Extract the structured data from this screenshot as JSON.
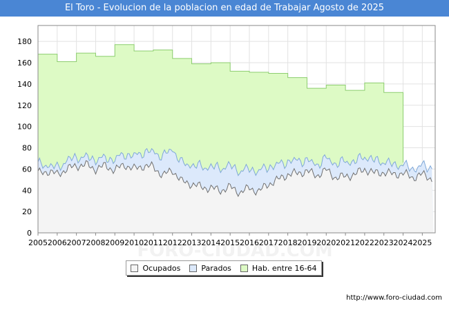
{
  "title": "El Toro - Evolucion de la poblacion en edad de Trabajar Agosto de 2025",
  "footer_url": "http://www.foro-ciudad.com",
  "watermark": "FORO-CIUDAD.COM",
  "colors": {
    "title_bg": "#4a86d4",
    "hab_fill": "#ddfac5",
    "hab_line": "#8ccd6e",
    "parados_fill": "#dce9fb",
    "parados_line": "#7fa8d8",
    "ocupados_fill": "#f4f4f4",
    "ocupados_line": "#707070"
  },
  "chart_data": {
    "type": "area",
    "title": "El Toro - Evolucion de la poblacion en edad de Trabajar Agosto de 2025",
    "x_range": [
      2005,
      2025.67
    ],
    "ylim": [
      0,
      195
    ],
    "y_ticks": [
      0,
      20,
      40,
      60,
      80,
      100,
      120,
      140,
      160,
      180
    ],
    "x_ticks": [
      "2005",
      "2006",
      "2007",
      "2008",
      "2009",
      "2010",
      "2011",
      "2012",
      "2013",
      "2014",
      "2015",
      "2016",
      "2017",
      "2018",
      "2019",
      "2020",
      "2021",
      "2022",
      "2023",
      "2024",
      "2025"
    ],
    "grid": true,
    "legend_position": "bottom",
    "legend": [
      "Ocupados",
      "Parados",
      "Hab. entre 16-64"
    ],
    "hab_16_64": {
      "years": [
        2005,
        2006,
        2007,
        2008,
        2009,
        2010,
        2011,
        2012,
        2013,
        2014,
        2015,
        2016,
        2017,
        2018,
        2019,
        2020,
        2021,
        2022,
        2023
      ],
      "values": [
        168,
        161,
        169,
        166,
        177,
        171,
        172,
        164,
        159,
        160,
        152,
        151,
        150,
        146,
        136,
        139,
        134,
        141,
        132
      ]
    },
    "monthly_anchors": {
      "x": [
        2005.0,
        2005.5,
        2006.0,
        2006.5,
        2007.0,
        2007.5,
        2008.0,
        2008.5,
        2009.0,
        2009.5,
        2010.0,
        2010.5,
        2011.0,
        2011.5,
        2012.0,
        2012.5,
        2013.0,
        2013.5,
        2014.0,
        2014.5,
        2015.0,
        2015.5,
        2016.0,
        2016.5,
        2017.0,
        2017.5,
        2018.0,
        2018.5,
        2019.0,
        2019.5,
        2020.0,
        2020.5,
        2021.0,
        2021.5,
        2022.0,
        2022.5,
        2023.0,
        2023.5,
        2024.0,
        2024.5,
        2025.0,
        2025.58
      ],
      "ocupados": [
        56,
        58,
        55,
        60,
        63,
        64,
        60,
        63,
        59,
        64,
        60,
        63,
        62,
        54,
        59,
        48,
        46,
        43,
        42,
        40,
        43,
        38,
        42,
        39,
        46,
        50,
        55,
        56,
        58,
        54,
        59,
        52,
        53,
        55,
        60,
        56,
        57,
        55,
        56,
        52,
        55,
        50
      ],
      "parados": [
        8,
        6,
        6,
        8,
        8,
        7,
        9,
        7,
        10,
        10,
        12,
        13,
        14,
        18,
        20,
        17,
        18,
        19,
        20,
        21,
        20,
        20,
        18,
        19,
        16,
        14,
        12,
        12,
        10,
        10,
        11,
        13,
        14,
        12,
        12,
        12,
        10,
        9,
        8,
        8,
        8,
        11
      ]
    }
  }
}
